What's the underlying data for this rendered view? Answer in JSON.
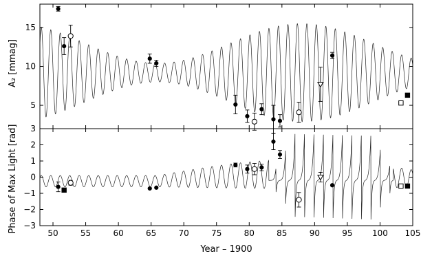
{
  "chart_data": [
    {
      "type": "scatter",
      "panel": "top",
      "ylabel": "A₂ [mmag]",
      "xlim": [
        48,
        105
      ],
      "ylim": [
        2,
        18
      ],
      "y_ticks": [
        "5",
        "10",
        "15"
      ],
      "model_curve": {
        "shape": "beating sinusoid",
        "mean": 9.2,
        "envelope_max_amp": 6.3,
        "envelope_min_amp": 1.2,
        "period_years": 1.45,
        "beat_min_year": 66,
        "beat_max_year": 88
      },
      "points": [
        {
          "x": 50.8,
          "y": 17.4,
          "err": 0.3,
          "marker": "filled-circle"
        },
        {
          "x": 51.7,
          "y": 12.6,
          "err": 1.1,
          "marker": "filled-circle"
        },
        {
          "x": 52.7,
          "y": 13.9,
          "err": 1.4,
          "marker": "open-circle"
        },
        {
          "x": 64.8,
          "y": 11.0,
          "err": 0.6,
          "marker": "filled-circle"
        },
        {
          "x": 65.8,
          "y": 10.4,
          "err": 0.4,
          "marker": "filled-circle"
        },
        {
          "x": 77.9,
          "y": 5.1,
          "err": 1.2,
          "marker": "filled-circle"
        },
        {
          "x": 79.7,
          "y": 3.6,
          "err": 0.8,
          "marker": "filled-circle"
        },
        {
          "x": 80.8,
          "y": 2.9,
          "err": 1.1,
          "marker": "open-circle"
        },
        {
          "x": 81.9,
          "y": 4.5,
          "err": 0.7,
          "marker": "filled-circle"
        },
        {
          "x": 83.7,
          "y": 3.2,
          "err": 1.8,
          "marker": "filled-circle"
        },
        {
          "x": 84.7,
          "y": 3.0,
          "err": 0.8,
          "marker": "filled-circle"
        },
        {
          "x": 87.6,
          "y": 4.1,
          "err": 1.3,
          "marker": "open-circle"
        },
        {
          "x": 90.9,
          "y": 7.7,
          "err": 2.2,
          "marker": "open-triangle-down"
        },
        {
          "x": 92.7,
          "y": 11.4,
          "err": 0.4,
          "marker": "filled-circle"
        },
        {
          "x": 103.2,
          "y": 5.3,
          "err": 0.0,
          "marker": "open-square"
        },
        {
          "x": 104.2,
          "y": 6.3,
          "err": 0.0,
          "marker": "filled-square"
        }
      ]
    },
    {
      "type": "scatter",
      "panel": "bottom",
      "ylabel": "Phase of Max Light [rad]",
      "xlabel": "Year – 1900",
      "xlim": [
        48,
        105
      ],
      "ylim": [
        -3,
        3
      ],
      "x_ticks": [
        "50",
        "55",
        "60",
        "65",
        "70",
        "75",
        "80",
        "85",
        "90",
        "95",
        "100",
        "105"
      ],
      "y_ticks": [
        "−3",
        "−2",
        "−1",
        "0",
        "1",
        "2",
        "3"
      ],
      "model_curve": {
        "shape": "oscillating phase with wrapping spikes",
        "period_years": 1.45,
        "wrap_region_years": [
          83,
          102
        ]
      },
      "points": [
        {
          "x": 50.8,
          "y": -0.6,
          "err": 0.3,
          "marker": "filled-circle"
        },
        {
          "x": 51.7,
          "y": -0.8,
          "err": 0.0,
          "marker": "filled-square"
        },
        {
          "x": 52.7,
          "y": -0.35,
          "err": 0.15,
          "marker": "open-circle"
        },
        {
          "x": 64.8,
          "y": -0.7,
          "err": 0.0,
          "marker": "filled-circle"
        },
        {
          "x": 65.8,
          "y": -0.65,
          "err": 0.0,
          "marker": "filled-circle"
        },
        {
          "x": 77.9,
          "y": 0.75,
          "err": 0.12,
          "marker": "filled-circle"
        },
        {
          "x": 79.7,
          "y": 0.5,
          "err": 0.25,
          "marker": "filled-circle"
        },
        {
          "x": 80.8,
          "y": 0.5,
          "err": 0.35,
          "marker": "open-circle"
        },
        {
          "x": 81.9,
          "y": 0.6,
          "err": 0.2,
          "marker": "filled-circle"
        },
        {
          "x": 83.7,
          "y": 2.2,
          "err": 0.5,
          "marker": "filled-circle"
        },
        {
          "x": 84.7,
          "y": 1.4,
          "err": 0.25,
          "marker": "filled-circle"
        },
        {
          "x": 87.6,
          "y": -1.4,
          "err": 0.45,
          "marker": "open-circle"
        },
        {
          "x": 90.9,
          "y": 0.0,
          "err": 0.3,
          "marker": "open-triangle-down"
        },
        {
          "x": 92.7,
          "y": -0.5,
          "err": 0.0,
          "marker": "filled-circle"
        },
        {
          "x": 103.2,
          "y": -0.55,
          "err": 0.0,
          "marker": "open-square"
        },
        {
          "x": 104.2,
          "y": -0.55,
          "err": 0.0,
          "marker": "filled-square"
        }
      ]
    }
  ]
}
